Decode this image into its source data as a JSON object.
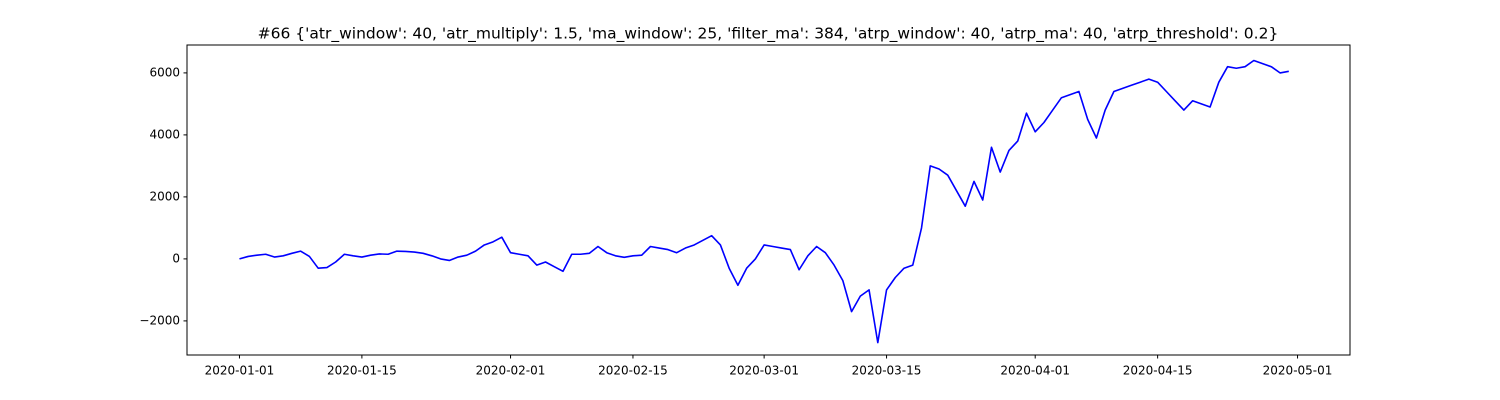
{
  "chart_data": {
    "type": "line",
    "title": "#66 {'atr_window': 40, 'atr_multiply': 1.5, 'ma_window': 25, 'filter_ma': 384, 'atrp_window': 40, 'atrp_ma': 40, 'atrp_threshold': 0.2}",
    "color": "#0000ff",
    "x": [
      "2020-01-01",
      "2020-01-02",
      "2020-01-03",
      "2020-01-04",
      "2020-01-05",
      "2020-01-06",
      "2020-01-07",
      "2020-01-08",
      "2020-01-09",
      "2020-01-10",
      "2020-01-11",
      "2020-01-12",
      "2020-01-13",
      "2020-01-14",
      "2020-01-15",
      "2020-01-16",
      "2020-01-17",
      "2020-01-18",
      "2020-01-19",
      "2020-01-20",
      "2020-01-21",
      "2020-01-22",
      "2020-01-23",
      "2020-01-24",
      "2020-01-25",
      "2020-01-26",
      "2020-01-27",
      "2020-01-28",
      "2020-01-29",
      "2020-01-30",
      "2020-01-31",
      "2020-02-01",
      "2020-02-02",
      "2020-02-03",
      "2020-02-04",
      "2020-02-05",
      "2020-02-06",
      "2020-02-07",
      "2020-02-08",
      "2020-02-09",
      "2020-02-10",
      "2020-02-11",
      "2020-02-12",
      "2020-02-13",
      "2020-02-14",
      "2020-02-15",
      "2020-02-16",
      "2020-02-17",
      "2020-02-18",
      "2020-02-19",
      "2020-02-20",
      "2020-02-21",
      "2020-02-22",
      "2020-02-23",
      "2020-02-24",
      "2020-02-25",
      "2020-02-26",
      "2020-02-27",
      "2020-02-28",
      "2020-02-29",
      "2020-03-01",
      "2020-03-02",
      "2020-03-03",
      "2020-03-04",
      "2020-03-05",
      "2020-03-06",
      "2020-03-07",
      "2020-03-08",
      "2020-03-09",
      "2020-03-10",
      "2020-03-11",
      "2020-03-12",
      "2020-03-13",
      "2020-03-14",
      "2020-03-15",
      "2020-03-16",
      "2020-03-17",
      "2020-03-18",
      "2020-03-19",
      "2020-03-20",
      "2020-03-21",
      "2020-03-22",
      "2020-03-23",
      "2020-03-24",
      "2020-03-25",
      "2020-03-26",
      "2020-03-27",
      "2020-03-28",
      "2020-03-29",
      "2020-03-30",
      "2020-03-31",
      "2020-04-01",
      "2020-04-02",
      "2020-04-03",
      "2020-04-04",
      "2020-04-05",
      "2020-04-06",
      "2020-04-07",
      "2020-04-08",
      "2020-04-09",
      "2020-04-10",
      "2020-04-11",
      "2020-04-12",
      "2020-04-13",
      "2020-04-14",
      "2020-04-15",
      "2020-04-16",
      "2020-04-17",
      "2020-04-18",
      "2020-04-19",
      "2020-04-20",
      "2020-04-21",
      "2020-04-22",
      "2020-04-23",
      "2020-04-24",
      "2020-04-25",
      "2020-04-26",
      "2020-04-27",
      "2020-04-28",
      "2020-04-29",
      "2020-04-30"
    ],
    "values": [
      0,
      80,
      120,
      150,
      60,
      100,
      180,
      250,
      80,
      -300,
      -280,
      -100,
      150,
      100,
      60,
      120,
      160,
      150,
      250,
      240,
      220,
      180,
      100,
      0,
      -50,
      60,
      120,
      250,
      450,
      550,
      700,
      200,
      150,
      100,
      -200,
      -100,
      -250,
      -400,
      150,
      150,
      180,
      400,
      200,
      100,
      50,
      100,
      120,
      400,
      350,
      300,
      200,
      350,
      450,
      600,
      750,
      450,
      -300,
      -850,
      -300,
      0,
      450,
      400,
      350,
      300,
      -350,
      100,
      400,
      200,
      -200,
      -700,
      -1700,
      -1200,
      -1000,
      -2700,
      -1000,
      -600,
      -300,
      -200,
      1000,
      3000,
      2900,
      2700,
      2200,
      1700,
      2500,
      1900,
      3600,
      2800,
      3500,
      3800,
      4700,
      4100,
      4400,
      4800,
      5200,
      5300,
      5400,
      4500,
      3900,
      4800,
      5400,
      5500,
      5600,
      5700,
      5800,
      5700,
      5400,
      5100,
      4800,
      5100,
      5000,
      4900,
      5700,
      6200,
      6150,
      6200,
      6400,
      6300,
      6200,
      6000,
      6050
    ],
    "xlim": [
      "2019-12-26",
      "2020-05-07"
    ],
    "xticks": [
      "2020-01-01",
      "2020-01-15",
      "2020-02-01",
      "2020-02-15",
      "2020-03-01",
      "2020-03-15",
      "2020-04-01",
      "2020-04-15",
      "2020-05-01"
    ],
    "ylim": [
      -3100,
      6900
    ],
    "yticks": [
      {
        "value": -2000,
        "label": "−2000"
      },
      0,
      2000,
      4000,
      6000
    ]
  }
}
